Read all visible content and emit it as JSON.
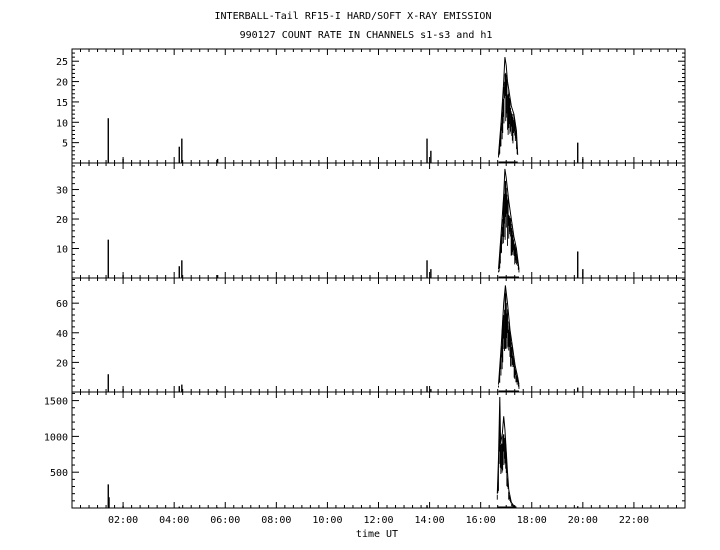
{
  "title_line1": "INTERBALL-Tail RF15-I HARD/SOFT X-RAY EMISSION",
  "title_line2": "990127  COUNT RATE IN CHANNELS s1-s3 and h1",
  "chart_data": {
    "type": "line",
    "xlabel": "time UT",
    "x_unit": "hours UT",
    "xlim": [
      0,
      24
    ],
    "x_ticks": [
      2,
      4,
      6,
      8,
      10,
      12,
      14,
      16,
      18,
      20,
      22
    ],
    "x_tick_labels": [
      "02:00",
      "04:00",
      "06:00",
      "08:00",
      "10:00",
      "12:00",
      "14:00",
      "16:00",
      "18:00",
      "20:00",
      "22:00"
    ],
    "panels": [
      {
        "name": "s1",
        "ylim": [
          0,
          28
        ],
        "y_ticks": [
          5,
          10,
          15,
          20,
          25
        ],
        "y_tick_labels": [
          "5",
          "10",
          "15",
          "20",
          "25"
        ],
        "spikes": [
          [
            1.42,
            11
          ],
          [
            2.0,
            1
          ],
          [
            4.2,
            4
          ],
          [
            4.3,
            6
          ],
          [
            5.7,
            1
          ],
          [
            13.9,
            6
          ],
          [
            14.05,
            3
          ],
          [
            19.8,
            5
          ],
          [
            20.0,
            1
          ]
        ],
        "burst": {
          "start": 16.7,
          "end": 17.45,
          "envelope": [
            [
              16.7,
              2
            ],
            [
              16.8,
              10
            ],
            [
              16.9,
              20
            ],
            [
              16.95,
              26
            ],
            [
              17.0,
              24
            ],
            [
              17.05,
              20
            ],
            [
              17.1,
              18
            ],
            [
              17.2,
              14
            ],
            [
              17.3,
              12
            ],
            [
              17.4,
              8
            ],
            [
              17.45,
              2
            ]
          ]
        }
      },
      {
        "name": "s2",
        "ylim": [
          0,
          39
        ],
        "y_ticks": [
          10,
          20,
          30
        ],
        "y_tick_labels": [
          "10",
          "20",
          "30"
        ],
        "spikes": [
          [
            1.42,
            13
          ],
          [
            2.0,
            1
          ],
          [
            4.2,
            4
          ],
          [
            4.3,
            6
          ],
          [
            5.7,
            1
          ],
          [
            13.9,
            6
          ],
          [
            14.05,
            3
          ],
          [
            19.8,
            9
          ],
          [
            20.0,
            3
          ]
        ],
        "burst": {
          "start": 16.7,
          "end": 17.5,
          "envelope": [
            [
              16.7,
              3
            ],
            [
              16.8,
              15
            ],
            [
              16.9,
              28
            ],
            [
              16.95,
              37
            ],
            [
              17.0,
              34
            ],
            [
              17.1,
              26
            ],
            [
              17.2,
              20
            ],
            [
              17.3,
              14
            ],
            [
              17.4,
              10
            ],
            [
              17.5,
              3
            ]
          ]
        }
      },
      {
        "name": "s3",
        "ylim": [
          0,
          77
        ],
        "y_ticks": [
          20,
          40,
          60
        ],
        "y_tick_labels": [
          "20",
          "40",
          "60"
        ],
        "spikes": [
          [
            1.42,
            12
          ],
          [
            2.0,
            2
          ],
          [
            4.2,
            4
          ],
          [
            4.3,
            5
          ],
          [
            5.7,
            1
          ],
          [
            13.9,
            4
          ],
          [
            14.05,
            2
          ],
          [
            19.8,
            3
          ]
        ],
        "burst": {
          "start": 16.7,
          "end": 17.5,
          "envelope": [
            [
              16.7,
              5
            ],
            [
              16.8,
              30
            ],
            [
              16.9,
              60
            ],
            [
              16.97,
              72
            ],
            [
              17.05,
              60
            ],
            [
              17.15,
              42
            ],
            [
              17.25,
              30
            ],
            [
              17.35,
              18
            ],
            [
              17.45,
              10
            ],
            [
              17.5,
              5
            ]
          ]
        }
      },
      {
        "name": "h1",
        "ylim": [
          0,
          1620
        ],
        "y_ticks": [
          500,
          1000,
          1500
        ],
        "y_tick_labels": [
          "500",
          "1000",
          "1500"
        ],
        "spikes": [
          [
            1.42,
            330
          ],
          [
            1.45,
            150
          ],
          [
            2.0,
            30
          ],
          [
            4.2,
            20
          ],
          [
            5.7,
            10
          ],
          [
            13.9,
            40
          ],
          [
            19.8,
            25
          ]
        ],
        "burst": {
          "start": 16.65,
          "end": 17.4,
          "envelope": [
            [
              16.65,
              200
            ],
            [
              16.7,
              700
            ],
            [
              16.75,
              1550
            ],
            [
              16.78,
              900
            ],
            [
              16.85,
              1050
            ],
            [
              16.9,
              1280
            ],
            [
              16.95,
              1100
            ],
            [
              17.0,
              800
            ],
            [
              17.05,
              500
            ],
            [
              17.1,
              250
            ],
            [
              17.2,
              80
            ],
            [
              17.3,
              30
            ],
            [
              17.4,
              10
            ]
          ]
        }
      }
    ]
  }
}
